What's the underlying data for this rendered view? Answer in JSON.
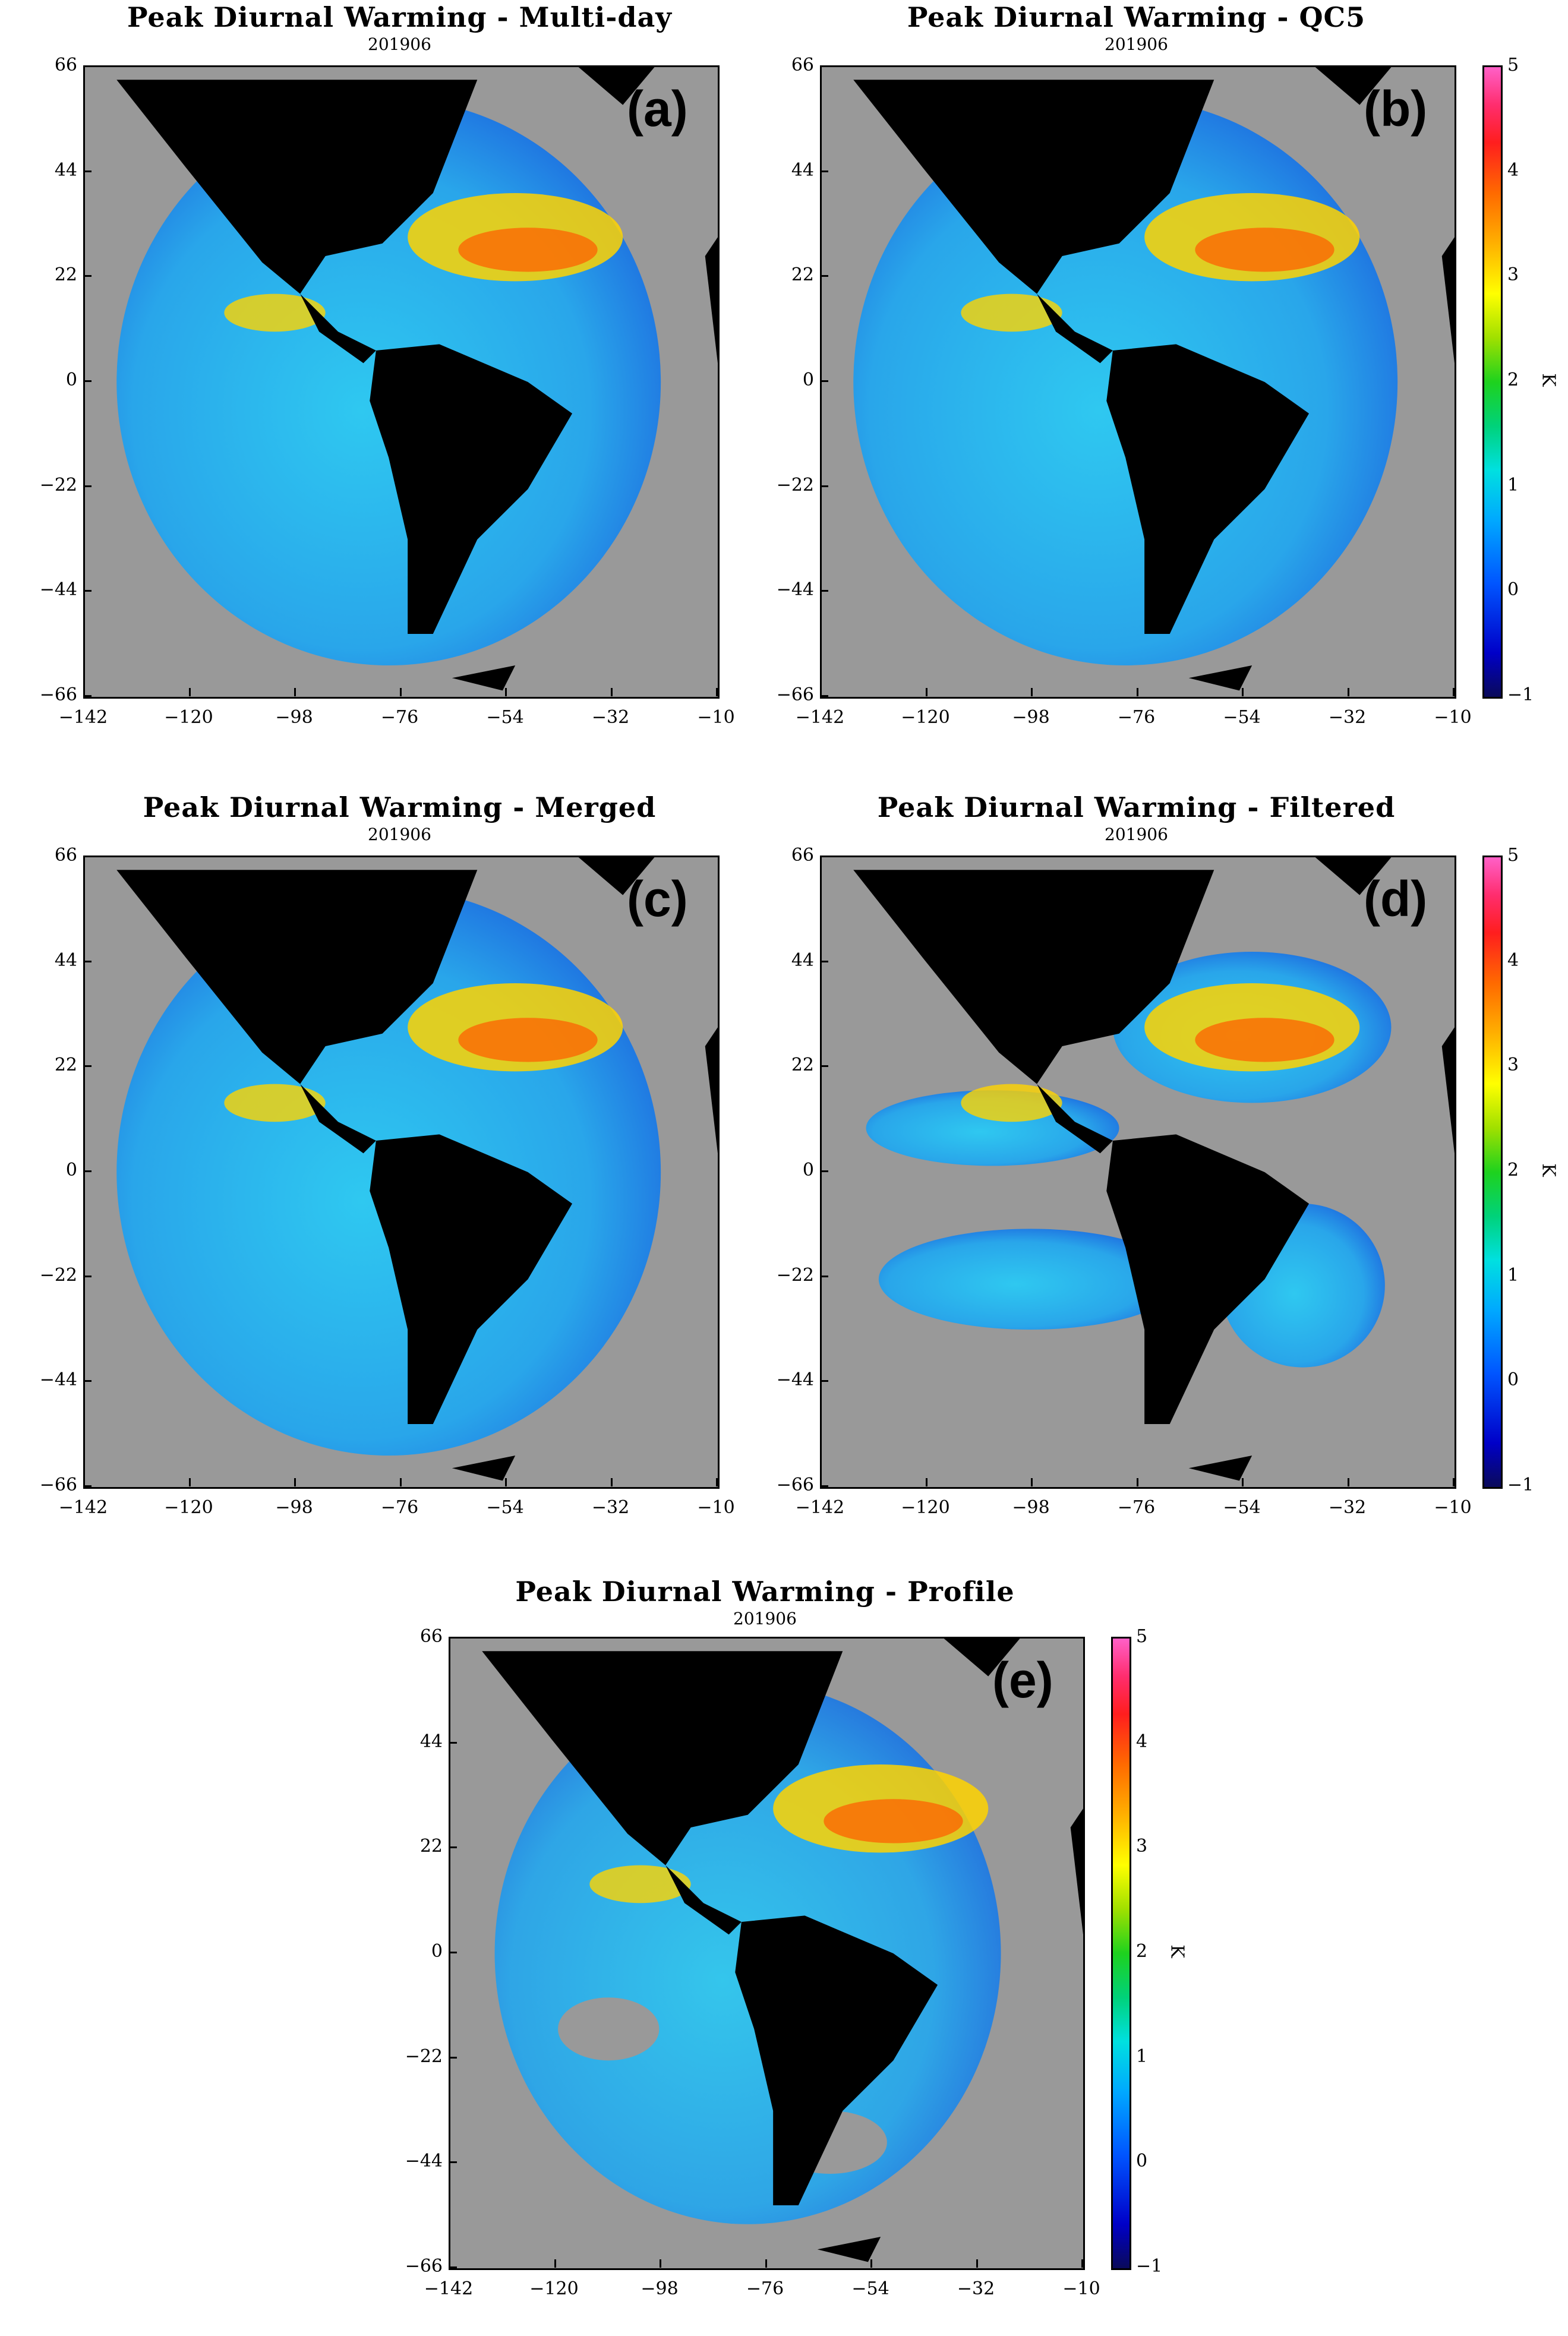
{
  "figure": {
    "subtitle": "201906",
    "y_ticks": [
      "66",
      "44",
      "22",
      "0",
      "-22",
      "-44",
      "-66"
    ],
    "x_ticks": [
      "-142",
      "-120",
      "-98",
      "-76",
      "-54",
      "-32",
      "-10"
    ],
    "colorbar": {
      "ticks": [
        "5",
        "4",
        "3",
        "2",
        "1",
        "0",
        "-1"
      ],
      "unit": "K",
      "range": [
        -1,
        5
      ]
    }
  },
  "panels": [
    {
      "title": "Peak Diurnal Warming - Multi-day",
      "letter": "(a)",
      "has_colorbar": false,
      "coverage": "full"
    },
    {
      "title": "Peak Diurnal Warming - QC5",
      "letter": "(b)",
      "has_colorbar": true,
      "coverage": "full"
    },
    {
      "title": "Peak Diurnal Warming - Merged",
      "letter": "(c)",
      "has_colorbar": false,
      "coverage": "full"
    },
    {
      "title": "Peak Diurnal Warming - Filtered",
      "letter": "(d)",
      "has_colorbar": true,
      "coverage": "patchy"
    },
    {
      "title": "Peak Diurnal Warming - Profile",
      "letter": "(e)",
      "has_colorbar": true,
      "coverage": "partial"
    }
  ],
  "colors": {
    "land": "#000000",
    "missing": "#999999",
    "ocean_low": "#1e6fe0",
    "ocean_mid": "#2fc8f0",
    "ocean_high": "#ffd400",
    "ocean_peak": "#ff5a00"
  }
}
